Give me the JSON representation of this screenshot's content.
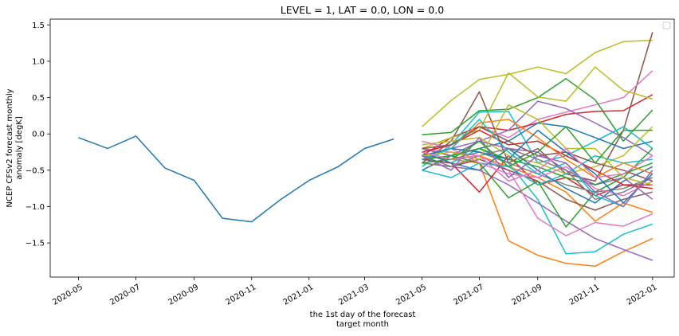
{
  "chart_data": {
    "type": "line",
    "title": "LEVEL = 1, LAT = 0.0, LON = 0.0",
    "ylabel": [
      "NCEP CFSv2 forecast monthly",
      "anomaly [degK]"
    ],
    "xlabel": [
      "the 1st day of the forecast",
      "target month"
    ],
    "ylim": [
      -1.97,
      1.58
    ],
    "xlim": [
      "2020-04-01",
      "2022-01-24"
    ],
    "yticks": [
      -1.5,
      -1.0,
      -0.5,
      0.0,
      0.5,
      1.0,
      1.5
    ],
    "ytick_labels": [
      "−1.5",
      "−1.0",
      "−0.5",
      "0.0",
      "0.5",
      "1.0",
      "1.5"
    ],
    "xticks": [
      "2020-05-01",
      "2020-07-01",
      "2020-09-01",
      "2020-11-01",
      "2021-01-01",
      "2021-03-01",
      "2021-05-01",
      "2021-07-01",
      "2021-09-01",
      "2021-11-01",
      "2022-01-01"
    ],
    "xtick_labels": [
      "2020-05",
      "2020-07",
      "2020-09",
      "2020-11",
      "2021-01",
      "2021-03",
      "2021-05",
      "2021-07",
      "2021-09",
      "2021-11",
      "2022-01"
    ],
    "legend": "top-right (empty)",
    "grid": false,
    "observed": {
      "color": "#1f77b4",
      "x": [
        "2020-05-01",
        "2020-06-01",
        "2020-07-01",
        "2020-08-01",
        "2020-09-01",
        "2020-10-01",
        "2020-11-01",
        "2020-12-01",
        "2021-01-01",
        "2021-02-01",
        "2021-03-01",
        "2021-04-01"
      ],
      "values": [
        -0.05,
        -0.2,
        -0.03,
        -0.47,
        -0.64,
        -1.16,
        -1.21,
        -0.91,
        -0.64,
        -0.45,
        -0.2,
        -0.07
      ]
    },
    "forecast_x": [
      "2021-05-01",
      "2021-06-01",
      "2021-07-01",
      "2021-08-01",
      "2021-09-01",
      "2021-10-01",
      "2021-11-01",
      "2021-12-01",
      "2022-01-01"
    ],
    "forecast_series": [
      {
        "color": "#bcbd22",
        "values": [
          0.1,
          0.46,
          0.75,
          0.82,
          0.92,
          0.83,
          1.12,
          1.27,
          1.29
        ]
      },
      {
        "color": "#8c564b",
        "values": [
          -0.4,
          -0.1,
          0.58,
          -0.4,
          -0.2,
          -0.55,
          -0.65,
          0.05,
          1.4
        ]
      },
      {
        "color": "#e377c2",
        "values": [
          -0.25,
          -0.15,
          0.1,
          -0.05,
          0.2,
          0.3,
          0.4,
          0.5,
          0.87
        ]
      },
      {
        "color": "#2ca02c",
        "values": [
          -0.01,
          0.02,
          0.32,
          0.34,
          0.5,
          0.76,
          0.47,
          -0.1,
          0.33
        ]
      },
      {
        "color": "#d62728",
        "values": [
          -0.3,
          -0.05,
          0.1,
          0.05,
          0.15,
          0.27,
          0.31,
          0.32,
          0.54
        ]
      },
      {
        "color": "#bcbd22",
        "values": [
          -0.2,
          -0.05,
          0.05,
          0.84,
          0.51,
          0.45,
          0.92,
          0.6,
          0.48
        ]
      },
      {
        "color": "#9467bd",
        "values": [
          -0.35,
          -0.2,
          -0.1,
          0.05,
          0.45,
          0.35,
          0.15,
          -0.05,
          -0.3
        ]
      },
      {
        "color": "#17becf",
        "values": [
          -0.45,
          -0.15,
          0.3,
          0.31,
          -0.4,
          -0.3,
          -0.1,
          0.1,
          -0.2
        ]
      },
      {
        "color": "#1f77b4",
        "values": [
          -0.5,
          -0.3,
          -0.2,
          -0.1,
          0.15,
          0.1,
          -0.05,
          -0.2,
          -0.1
        ]
      },
      {
        "color": "#ff7f0e",
        "values": [
          -0.3,
          -0.35,
          -0.4,
          -1.47,
          -1.67,
          -1.78,
          -1.82,
          -1.62,
          -1.44
        ]
      },
      {
        "color": "#17becf",
        "values": [
          -0.35,
          -0.4,
          -0.2,
          -0.4,
          -0.9,
          -1.65,
          -1.62,
          -1.38,
          -1.24
        ]
      },
      {
        "color": "#9467bd",
        "values": [
          -0.3,
          -0.45,
          -0.5,
          -0.7,
          -0.95,
          -1.2,
          -1.44,
          -1.59,
          -1.74
        ]
      },
      {
        "color": "#e377c2",
        "values": [
          -0.2,
          -0.25,
          -0.3,
          -0.5,
          -1.16,
          -1.4,
          -1.22,
          -1.27,
          -1.1
        ]
      },
      {
        "color": "#2ca02c",
        "values": [
          -0.2,
          -0.3,
          -0.4,
          -0.88,
          -0.65,
          -1.28,
          -0.8,
          -0.6,
          -0.2
        ]
      },
      {
        "color": "#d62728",
        "values": [
          -0.35,
          -0.4,
          -0.8,
          -0.3,
          -0.7,
          -0.6,
          -0.85,
          -0.7,
          -0.7
        ]
      },
      {
        "color": "#ff7f0e",
        "values": [
          -0.25,
          -0.35,
          -0.3,
          -0.45,
          -0.6,
          -0.8,
          -1.2,
          -0.95,
          -1.08
        ]
      },
      {
        "color": "#8c564b",
        "values": [
          -0.4,
          -0.45,
          -0.35,
          -0.5,
          -0.65,
          -0.9,
          -1.05,
          -0.9,
          -0.8
        ]
      },
      {
        "color": "#7f7f7f",
        "values": [
          -0.3,
          -0.35,
          -0.25,
          -0.4,
          -0.55,
          -0.7,
          -0.8,
          -0.75,
          -0.6
        ]
      },
      {
        "color": "#bcbd22",
        "values": [
          -0.15,
          -0.1,
          -0.05,
          -0.3,
          -0.4,
          -0.55,
          -0.45,
          -0.3,
          0.1
        ]
      },
      {
        "color": "#1f77b4",
        "values": [
          -0.25,
          -0.4,
          -0.5,
          -0.2,
          -0.5,
          -0.75,
          -0.95,
          -0.65,
          -0.45
        ]
      },
      {
        "color": "#17becf",
        "values": [
          -0.5,
          -0.6,
          -0.4,
          -0.45,
          -0.7,
          -0.55,
          -0.3,
          -0.4,
          -0.35
        ]
      },
      {
        "color": "#9467bd",
        "values": [
          -0.2,
          -0.3,
          -0.1,
          -0.2,
          -0.25,
          -0.5,
          -0.7,
          -0.6,
          -0.9
        ]
      },
      {
        "color": "#2ca02c",
        "values": [
          -0.35,
          -0.3,
          -0.2,
          -0.35,
          -0.45,
          -0.6,
          -0.7,
          -0.55,
          -0.4
        ]
      },
      {
        "color": "#e377c2",
        "values": [
          -0.1,
          -0.2,
          -0.4,
          -0.55,
          -0.6,
          -0.45,
          -0.75,
          -0.85,
          -0.65
        ]
      },
      {
        "color": "#d62728",
        "values": [
          -0.25,
          -0.15,
          0.05,
          -0.15,
          -0.1,
          -0.3,
          -0.5,
          -0.7,
          -0.75
        ]
      },
      {
        "color": "#ff7f0e",
        "values": [
          -0.3,
          -0.2,
          0.15,
          0.2,
          -0.05,
          -0.35,
          -0.6,
          -0.4,
          -0.55
        ]
      },
      {
        "color": "#8c564b",
        "values": [
          -0.2,
          -0.15,
          0.1,
          -0.1,
          -0.3,
          -0.25,
          -0.4,
          -0.5,
          -0.65
        ]
      },
      {
        "color": "#7f7f7f",
        "values": [
          -0.4,
          -0.45,
          -0.3,
          -0.2,
          -0.35,
          -0.5,
          -0.9,
          -0.8,
          -0.6
        ]
      },
      {
        "color": "#1f77b4",
        "values": [
          -0.3,
          -0.2,
          -0.25,
          -0.35,
          0.05,
          -0.25,
          -0.55,
          -0.95,
          -0.55
        ]
      },
      {
        "color": "#17becf",
        "values": [
          -0.35,
          -0.2,
          0.2,
          -0.25,
          -0.55,
          -0.4,
          -0.85,
          -1.0,
          -0.5
        ]
      },
      {
        "color": "#bcbd22",
        "values": [
          -0.3,
          -0.25,
          -0.35,
          0.4,
          0.2,
          -0.2,
          -0.2,
          -0.6,
          -0.7
        ]
      },
      {
        "color": "#9467bd",
        "values": [
          -0.3,
          -0.5,
          -0.05,
          -0.6,
          -0.3,
          -0.4,
          -0.8,
          -1.0,
          -0.5
        ]
      },
      {
        "color": "#2ca02c",
        "values": [
          -0.4,
          -0.35,
          -0.1,
          -0.45,
          -0.25,
          0.1,
          -0.4,
          0.05,
          0.05
        ]
      },
      {
        "color": "#e377c2",
        "values": [
          -0.25,
          -0.35,
          -0.3,
          -0.65,
          -0.5,
          -0.2,
          -0.6,
          -0.55,
          -0.3
        ]
      }
    ]
  }
}
